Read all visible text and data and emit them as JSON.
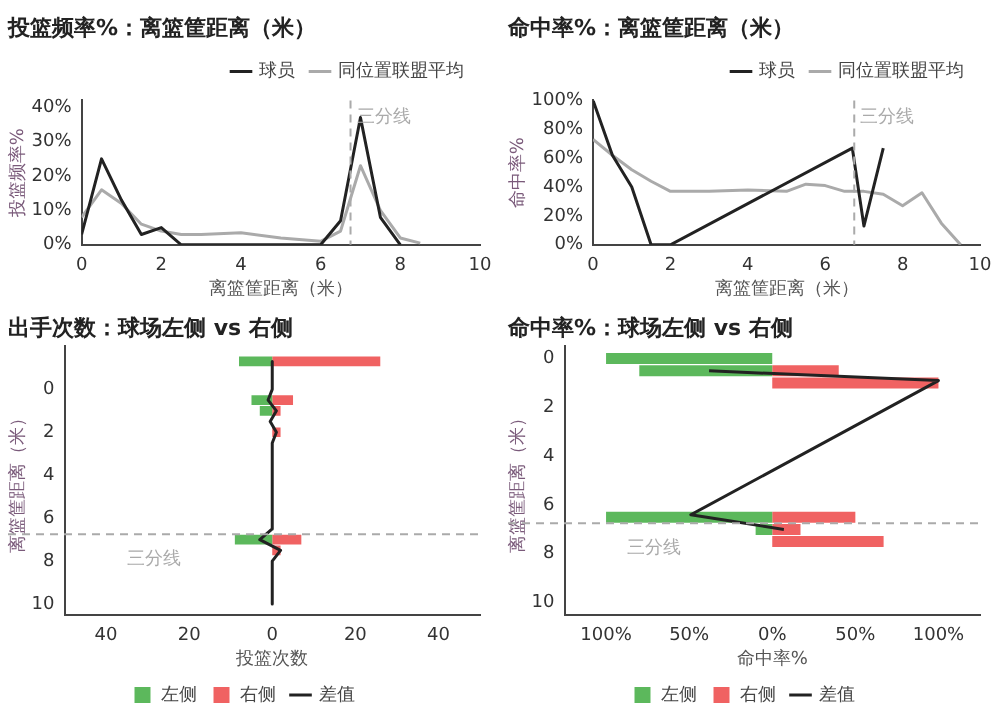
{
  "chart_data": [
    {
      "type": "line",
      "title": "投篮频率%：离篮筐距离（米）",
      "xlabel": "离篮筐距离（米）",
      "ylabel": "投篮频率%",
      "legend": "top right",
      "marker": "none",
      "xlim": [
        0,
        10
      ],
      "xticks": [
        0,
        2,
        4,
        6,
        8,
        10
      ],
      "ylim": [
        0,
        42
      ],
      "yticks": [
        {
          "value": 0,
          "label": "0%"
        },
        {
          "value": 10,
          "label": "10%"
        },
        {
          "value": 20,
          "label": "20%"
        },
        {
          "value": 30,
          "label": "30%"
        },
        {
          "value": 40,
          "label": "40%"
        }
      ],
      "series": [
        {
          "name": "球员",
          "color": "#222222",
          "x": [
            0,
            0.5,
            1,
            1.5,
            2,
            2.5,
            6,
            6.5,
            7,
            7.5,
            8
          ],
          "values": [
            3,
            25,
            13,
            3,
            5,
            0,
            0,
            7,
            37,
            8,
            0
          ]
        },
        {
          "name": "同位置联盟平均",
          "color": "#aaaaaa",
          "x": [
            0,
            0.5,
            1,
            1.5,
            2,
            2.5,
            3,
            4,
            5,
            6,
            6.5,
            7,
            7.5,
            8,
            8.5
          ],
          "values": [
            8,
            16,
            12,
            6,
            4,
            3,
            3,
            3.5,
            2,
            1,
            4,
            23,
            10,
            2,
            0.5
          ]
        }
      ],
      "ref_lines": [
        {
          "axis": "x",
          "value": 6.75,
          "label": "三分线",
          "color": "#aaaaaa",
          "line_style": "dashed"
        }
      ]
    },
    {
      "type": "line",
      "title": "命中率%：离篮筐距离（米）",
      "xlabel": "离篮筐距离（米）",
      "ylabel": "命中率%",
      "legend": "top right",
      "marker": "none",
      "xlim": [
        0,
        10
      ],
      "xticks": [
        0,
        2,
        4,
        6,
        8,
        10
      ],
      "ylim": [
        0,
        100
      ],
      "yticks": [
        {
          "value": 0,
          "label": "0%"
        },
        {
          "value": 20,
          "label": "20%"
        },
        {
          "value": 40,
          "label": "40%"
        },
        {
          "value": 60,
          "label": "60%"
        },
        {
          "value": 80,
          "label": "80%"
        },
        {
          "value": 100,
          "label": "100%"
        }
      ],
      "series": [
        {
          "name": "球员",
          "color": "#222222",
          "x": [
            0,
            0.5,
            1,
            1.5,
            2,
            6.7,
            7,
            7.5
          ],
          "values": [
            100,
            62,
            40,
            0,
            0,
            67,
            13,
            67
          ]
        },
        {
          "name": "同位置联盟平均",
          "color": "#aaaaaa",
          "x": [
            0,
            0.5,
            1,
            1.5,
            2,
            3,
            4,
            5,
            5.5,
            6,
            6.5,
            7,
            7.5,
            8,
            8.5,
            9,
            9.5
          ],
          "values": [
            73,
            62,
            52,
            44,
            37,
            37,
            38,
            37,
            42,
            41,
            37,
            37,
            35,
            27,
            36,
            15,
            0
          ]
        }
      ],
      "ref_lines": [
        {
          "axis": "x",
          "value": 6.75,
          "label": "三分线",
          "color": "#aaaaaa",
          "line_style": "dashed"
        }
      ]
    },
    {
      "type": "bar",
      "orientation": "horizontal",
      "title": "出手次数：球场左侧 vs 右侧",
      "xlabel": "投篮次数",
      "ylabel": "离篮筐距离（米）",
      "legend": "bottom",
      "x": [
        -1.3,
        0.5,
        1,
        2,
        7,
        7.5
      ],
      "stacked": true,
      "xlim": [
        -50,
        50
      ],
      "xticks": [
        {
          "value": -40,
          "label": "40"
        },
        {
          "value": -20,
          "label": "20"
        },
        0,
        20,
        40
      ],
      "ylim": [
        10.5,
        -2
      ],
      "yticks": [
        0,
        2,
        4,
        6,
        8,
        10
      ],
      "series": [
        {
          "name": "左侧",
          "color": "#5cb85c",
          "values": [
            -8,
            -5,
            -3,
            null,
            -9,
            null
          ]
        },
        {
          "name": "右侧",
          "color": "#f06262",
          "values": [
            26,
            5,
            2,
            2,
            7,
            2
          ]
        },
        {
          "name": "差值",
          "type": "line",
          "color": "#222222",
          "x": [
            -1.3,
            0,
            0.5,
            1,
            1.5,
            2,
            2.5,
            6.5,
            7,
            7.5,
            8,
            10
          ],
          "values": [
            0,
            0,
            -1,
            1,
            -0.5,
            1,
            0,
            0,
            -3,
            2,
            0,
            0
          ]
        }
      ],
      "ref_lines": [
        {
          "axis": "y",
          "value": 6.75,
          "label": "三分线",
          "color": "#aaaaaa",
          "line_style": "dashed"
        }
      ]
    },
    {
      "type": "bar",
      "orientation": "horizontal",
      "title": "命中率%：球场左侧 vs 右侧",
      "xlabel": "命中率%",
      "ylabel": "离篮筐距离（米）",
      "legend": "bottom",
      "x": [
        0,
        0.5,
        1,
        6.5,
        7,
        7.5
      ],
      "stacked": true,
      "xlim": [
        -125,
        125
      ],
      "xticks": [
        {
          "value": -100,
          "label": "100%"
        },
        {
          "value": -50,
          "label": "50%"
        },
        {
          "value": 0,
          "label": "0%"
        },
        {
          "value": 50,
          "label": "50%"
        },
        {
          "value": 100,
          "label": "100%"
        }
      ],
      "ylim": [
        10.5,
        -0.5
      ],
      "yticks": [
        0,
        2,
        4,
        6,
        8,
        10
      ],
      "series": [
        {
          "name": "左侧",
          "color": "#5cb85c",
          "values": [
            -100,
            -80,
            null,
            -100,
            -10,
            null
          ]
        },
        {
          "name": "右侧",
          "color": "#f06262",
          "values": [
            null,
            40,
            100,
            50,
            17,
            67
          ]
        },
        {
          "name": "差值",
          "type": "line",
          "color": "#222222",
          "x": [
            0.5,
            0.9,
            6.4,
            7
          ],
          "values": [
            -38,
            100,
            -49,
            7
          ]
        }
      ],
      "ref_lines": [
        {
          "axis": "y",
          "value": 6.75,
          "label": "三分线",
          "color": "#aaaaaa",
          "line_style": "dashed"
        }
      ]
    }
  ]
}
